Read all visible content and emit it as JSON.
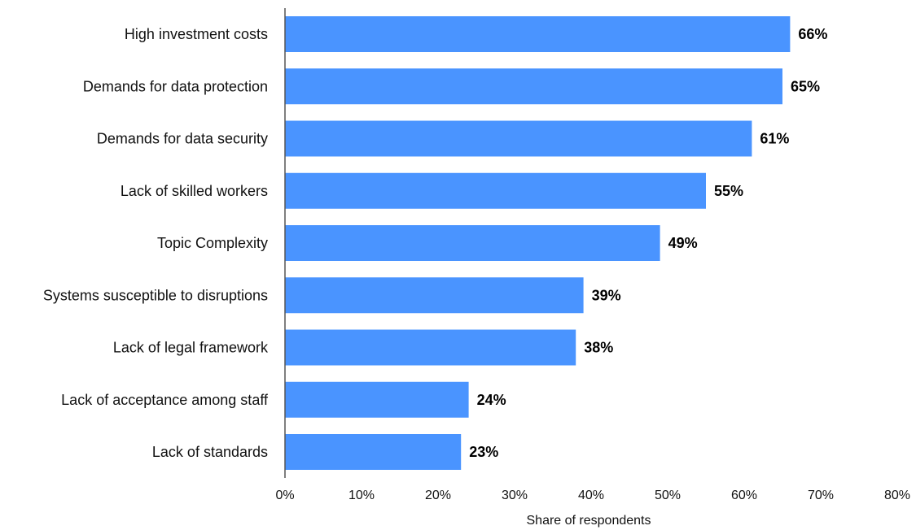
{
  "chart_data": {
    "type": "bar",
    "orientation": "horizontal",
    "categories": [
      "High investment costs",
      "Demands for data protection",
      "Demands for data security",
      "Lack of skilled workers",
      "Topic Complexity",
      "Systems susceptible to disruptions",
      "Lack of legal framework",
      "Lack of acceptance among staff",
      "Lack of standards"
    ],
    "values": [
      66,
      65,
      61,
      55,
      49,
      39,
      38,
      24,
      23
    ],
    "value_labels": [
      "66%",
      "65%",
      "61%",
      "55%",
      "49%",
      "39%",
      "38%",
      "24%",
      "23%"
    ],
    "xlabel": "Share of respondents",
    "ylabel": "",
    "xlim": [
      0,
      80
    ],
    "xticks": [
      0,
      10,
      20,
      30,
      40,
      50,
      60,
      70,
      80
    ],
    "xtick_labels": [
      "0%",
      "10%",
      "20%",
      "30%",
      "40%",
      "50%",
      "60%",
      "70%",
      "80%"
    ],
    "grid": false,
    "legend": "none",
    "bar_color": "#4a94ff",
    "axis_color": "#555555"
  }
}
